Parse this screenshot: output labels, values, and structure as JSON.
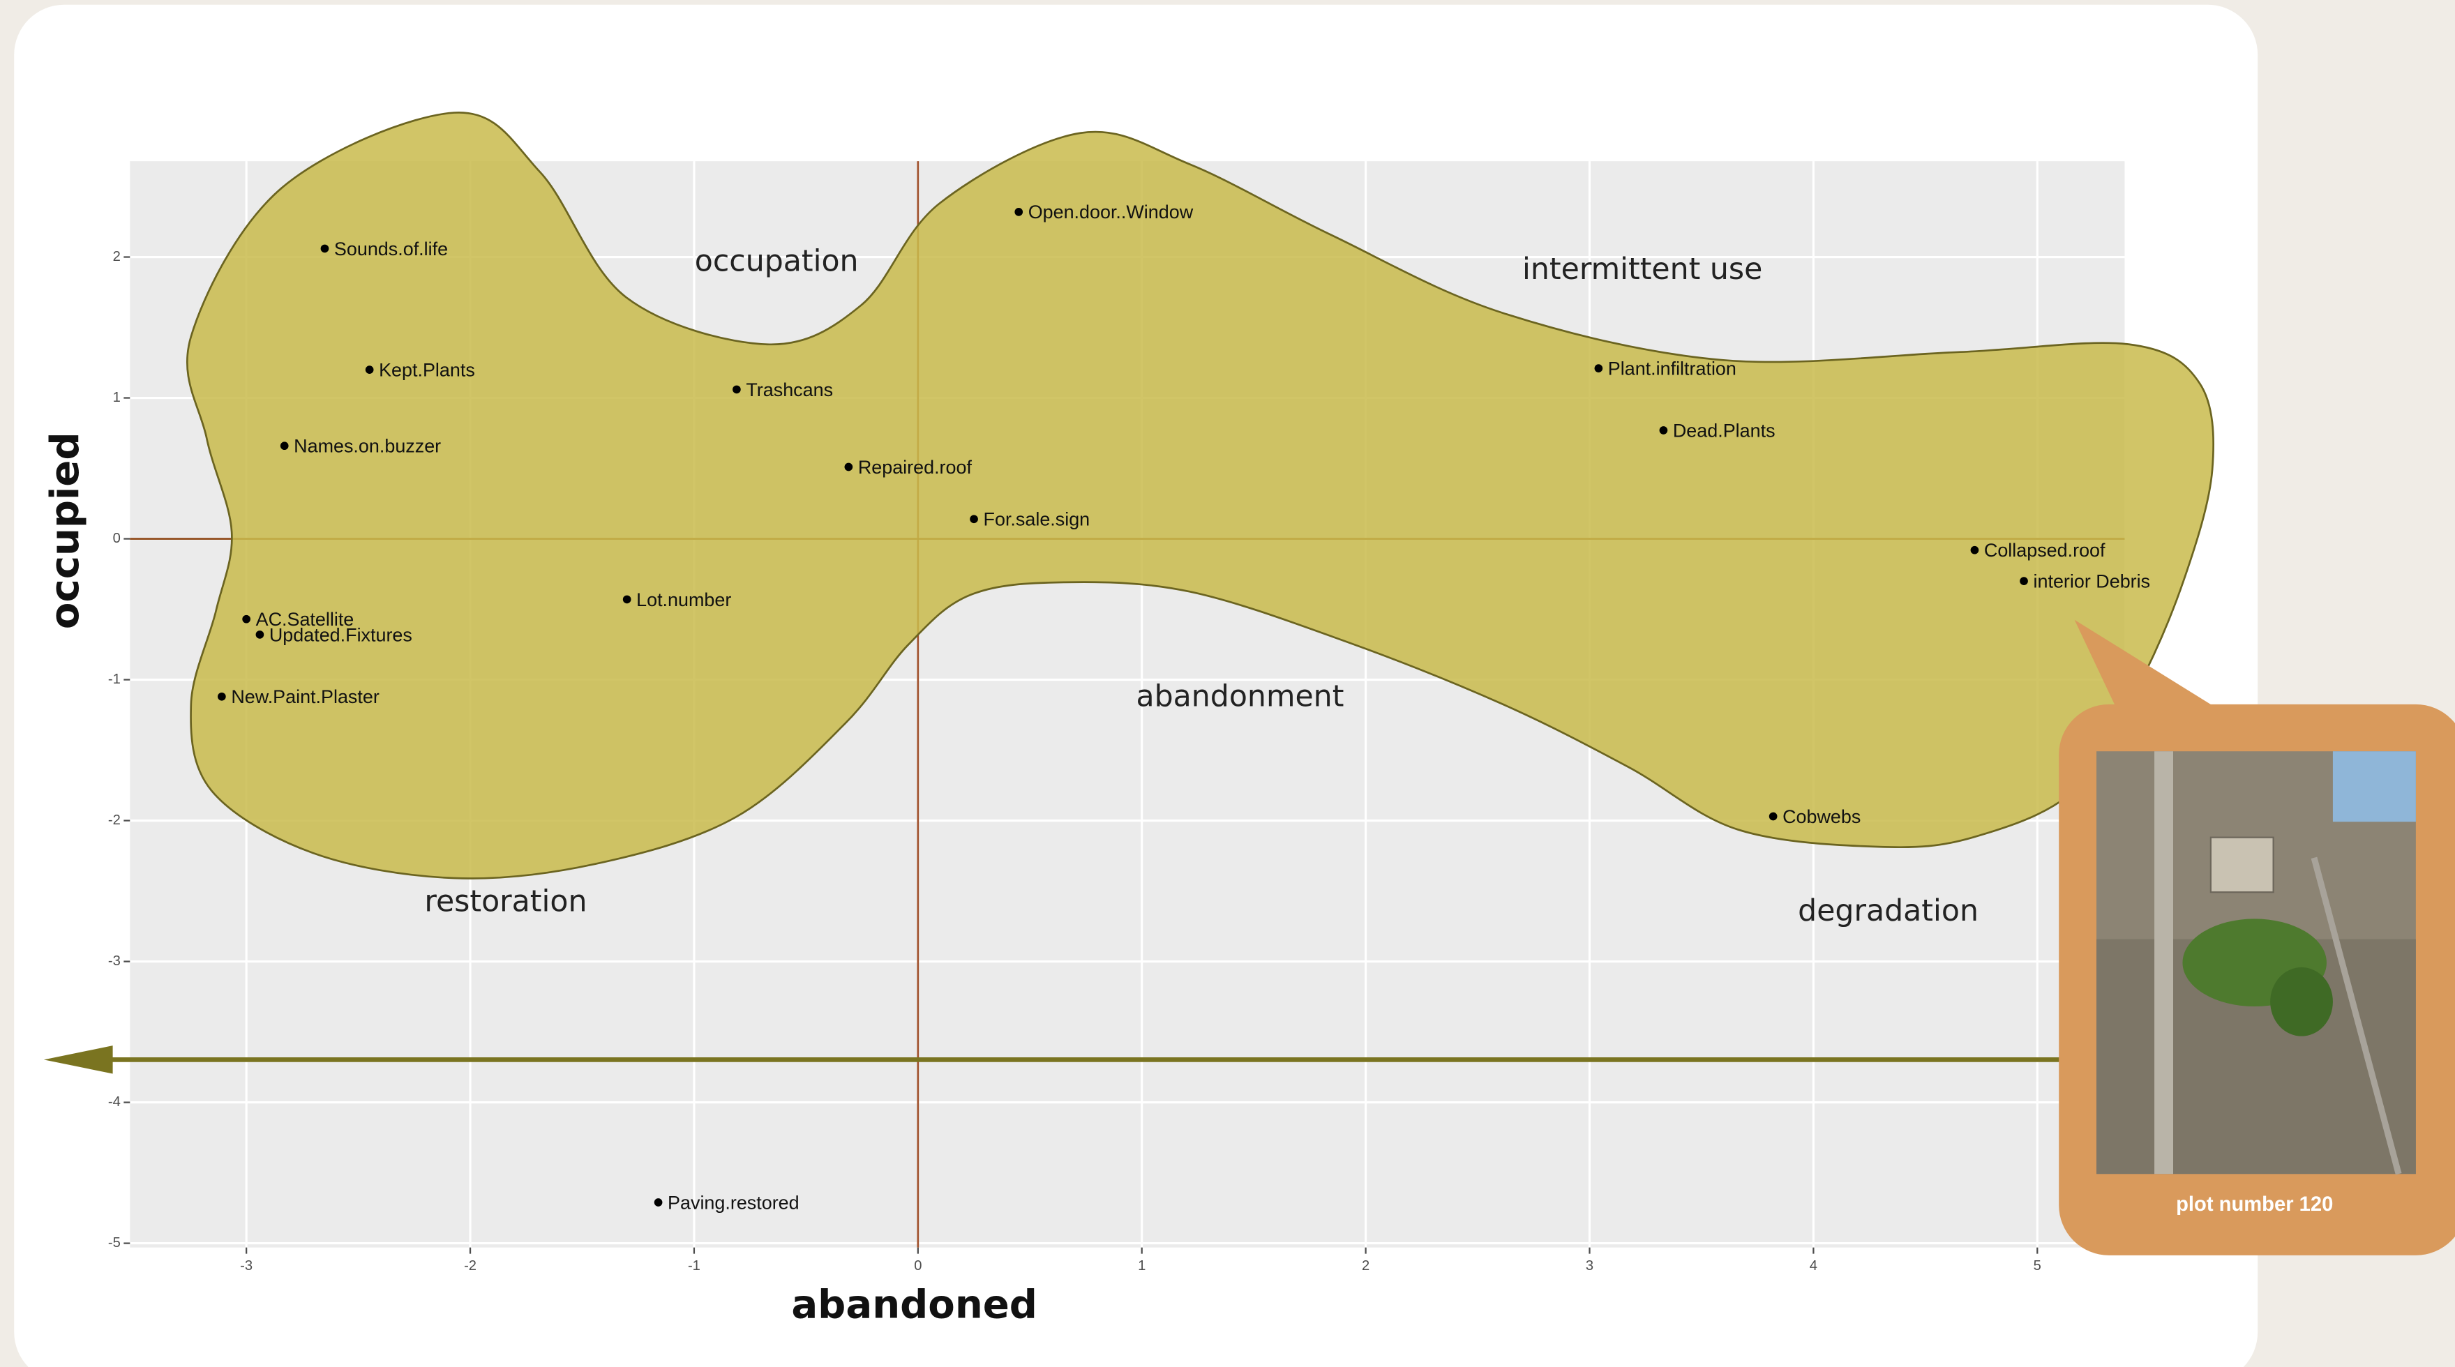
{
  "chart_data": {
    "type": "scatter",
    "x_label": "abandoned",
    "y_label": "occupied",
    "labels": [
      "Sounds.of.life",
      "Kept.Plants",
      "Names.on.buzzer",
      "AC.Satellite",
      "Updated.Fixtures",
      "New.Paint.Plaster",
      "Lot.number",
      "Trashcans",
      "Repaired.roof",
      "For.sale.sign",
      "Open.door..Window",
      "Plant.infiltration",
      "Dead.Plants",
      "Collapsed.roof",
      "interior Debris",
      "Cobwebs",
      "Paving.restored"
    ],
    "x": [
      -2.65,
      -2.45,
      -2.83,
      -3.0,
      -2.94,
      -3.11,
      -1.3,
      -0.81,
      -0.31,
      0.25,
      0.45,
      3.04,
      3.33,
      4.72,
      4.94,
      3.82,
      -1.16
    ],
    "y": [
      2.06,
      1.2,
      0.66,
      -0.57,
      -0.68,
      -1.12,
      -0.43,
      1.06,
      0.51,
      0.14,
      2.32,
      1.21,
      0.77,
      -0.08,
      -0.3,
      -1.97,
      -4.71
    ],
    "color": "#000000",
    "xlim": [
      -3.52,
      5.39
    ],
    "ylim": [
      -5.03,
      2.68
    ],
    "xticks": [
      -3,
      -2,
      -1,
      0,
      1,
      2,
      3,
      4,
      5
    ],
    "yticks": [
      -5,
      -4,
      -3,
      -2,
      -1,
      0,
      1,
      2
    ],
    "grid": true,
    "annotations": [
      "occupation",
      "intermittent use",
      "abandonment",
      "restoration",
      "degradation"
    ]
  },
  "callout": {
    "caption": "plot number 120"
  }
}
